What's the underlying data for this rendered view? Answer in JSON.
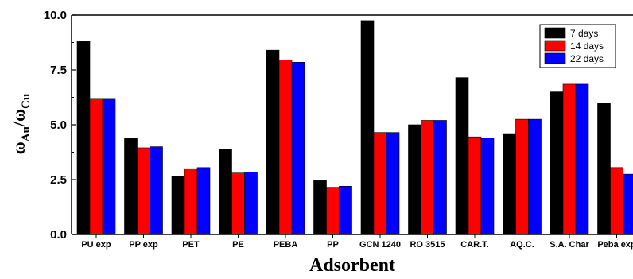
{
  "chart_data": {
    "type": "bar",
    "title": "",
    "xlabel": "Adsorbent",
    "ylabel": {
      "main1": "ω",
      "sub1": "Au",
      "slash": "/",
      "main2": "ω",
      "sub2": "Cu"
    },
    "ylim": [
      0,
      10
    ],
    "yticks": [
      "0.0",
      "2.5",
      "5.0",
      "7.5",
      "10.0"
    ],
    "categories": [
      "PU exp",
      "PP exp",
      "PET",
      "PE",
      "PEBA",
      "PP",
      "GCN 1240",
      "RO 3515",
      "CAR.T.",
      "AQ.C.",
      "S.A. Char",
      "Peba exp"
    ],
    "series": [
      {
        "name": "7 days",
        "color": "#000000",
        "values": [
          8.8,
          4.4,
          2.65,
          3.9,
          8.4,
          2.45,
          9.75,
          5.0,
          7.15,
          4.6,
          6.5,
          6.0
        ]
      },
      {
        "name": "14 days",
        "color": "#ff0000",
        "values": [
          6.2,
          3.95,
          3.0,
          2.8,
          7.95,
          2.15,
          4.65,
          5.2,
          4.45,
          5.25,
          6.85,
          3.05
        ]
      },
      {
        "name": "22 days",
        "color": "#0000ff",
        "values": [
          6.2,
          4.0,
          3.05,
          2.85,
          7.85,
          2.2,
          4.65,
          5.2,
          4.4,
          5.25,
          6.85,
          2.75
        ]
      }
    ],
    "legend_position": "top-right",
    "grid": false
  }
}
